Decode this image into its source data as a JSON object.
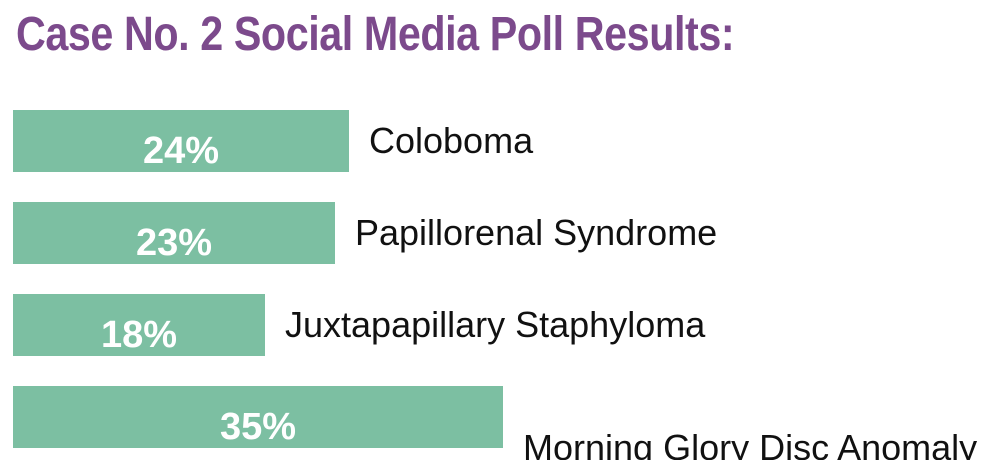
{
  "colors": {
    "title": "#7c4a8c",
    "bar": "#7cbfa2",
    "value_text": "#ffffff",
    "label_text": "#111111"
  },
  "chart_data": {
    "type": "bar",
    "orientation": "horizontal",
    "title": "Case No. 2 Social Media Poll Results:",
    "categories": [
      "Coloboma",
      "Papillorenal Syndrome",
      "Juxtapapillary Staphyloma",
      "Morning Glory Disc Anomaly"
    ],
    "values": [
      24,
      23,
      18,
      35
    ],
    "value_labels": [
      "24%",
      "23%",
      "18%",
      "35%"
    ],
    "unit": "%",
    "xlim": [
      0,
      100
    ],
    "grid": false,
    "legend": "none"
  }
}
